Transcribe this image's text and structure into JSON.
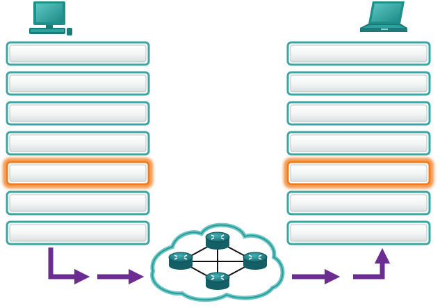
{
  "diagram": {
    "source_host": {
      "icon": "desktop-computer-icon"
    },
    "destination_host": {
      "icon": "laptop-computer-icon"
    },
    "network": {
      "icon": "cloud-icon",
      "router_icon": "router-icon",
      "router_count": 4
    },
    "layers": [
      {
        "label": "",
        "highlighted": false
      },
      {
        "label": "",
        "highlighted": false
      },
      {
        "label": "",
        "highlighted": false
      },
      {
        "label": "",
        "highlighted": false
      },
      {
        "label": "",
        "highlighted": true
      },
      {
        "label": "",
        "highlighted": false
      },
      {
        "label": "",
        "highlighted": false
      }
    ],
    "colors": {
      "layer_border": "#3aa6a4",
      "layer_fill": "#f2f4f4",
      "highlight": "#f07c1e",
      "arrow": "#6b2d91",
      "device": "#1f8f8c",
      "router": "#1b7f84",
      "link": "#111111"
    }
  }
}
